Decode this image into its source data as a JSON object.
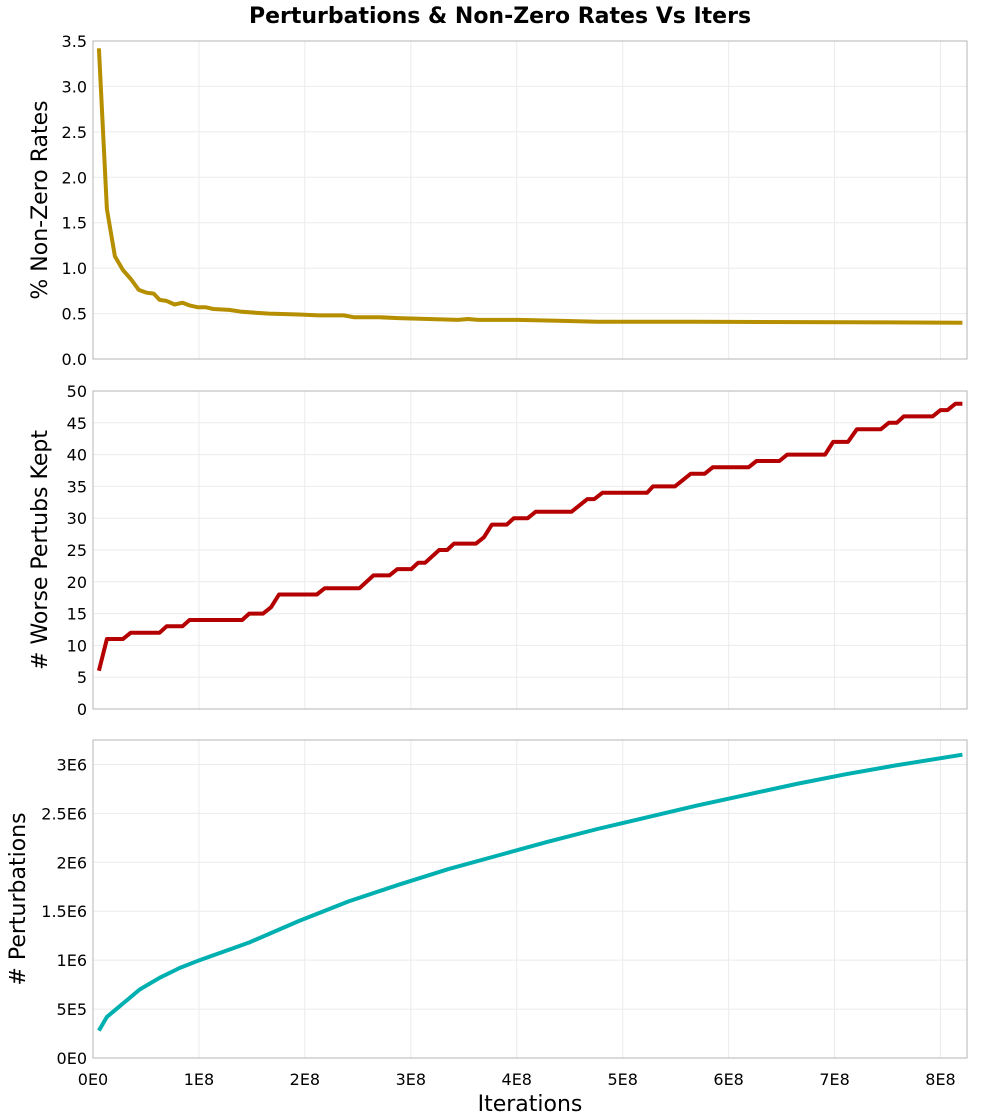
{
  "chart_data": {
    "title": "Perturbations & Non-Zero Rates Vs Iters",
    "xlabel": "Iterations",
    "xlim": [
      0,
      825000000
    ],
    "xticks": [
      0,
      100000000,
      200000000,
      300000000,
      400000000,
      500000000,
      600000000,
      700000000,
      800000000
    ],
    "xtick_labels": [
      "0E0",
      "1E8",
      "2E8",
      "3E8",
      "4E8",
      "5E8",
      "6E8",
      "7E8",
      "8E8"
    ],
    "grid": true,
    "panels": [
      {
        "type": "line",
        "ylabel": "% Non-Zero Rates",
        "ylim": [
          0,
          3.5
        ],
        "yticks": [
          0,
          0.5,
          1.0,
          1.5,
          2.0,
          2.5,
          3.0,
          3.5
        ],
        "ytick_labels": [
          "0.0",
          "0.5",
          "1.0",
          "1.5",
          "2.0",
          "2.5",
          "3.0",
          "3.5"
        ],
        "color": "#b58f00",
        "x_e8": [
          0.056,
          0.131,
          0.207,
          0.282,
          0.357,
          0.432,
          0.507,
          0.573,
          0.629,
          0.695,
          0.77,
          0.845,
          0.911,
          0.986,
          1.061,
          1.136,
          1.286,
          1.408,
          1.531,
          1.662,
          1.944,
          2.131,
          2.366,
          2.46,
          2.695,
          2.883,
          3.164,
          3.446,
          3.54,
          3.634,
          4.009,
          4.385,
          4.761,
          5.23,
          5.7,
          8.207
        ],
        "y": [
          3.42,
          1.65,
          1.13,
          0.98,
          0.88,
          0.76,
          0.73,
          0.72,
          0.65,
          0.64,
          0.6,
          0.62,
          0.59,
          0.57,
          0.57,
          0.55,
          0.54,
          0.52,
          0.51,
          0.5,
          0.49,
          0.48,
          0.48,
          0.46,
          0.46,
          0.45,
          0.44,
          0.43,
          0.44,
          0.43,
          0.43,
          0.42,
          0.41,
          0.41,
          0.41,
          0.4
        ]
      },
      {
        "type": "line",
        "ylabel": "# Worse Pertubs Kept",
        "ylim": [
          0,
          50
        ],
        "yticks": [
          0,
          5,
          10,
          15,
          20,
          25,
          30,
          35,
          40,
          45,
          50
        ],
        "ytick_labels": [
          "0",
          "5",
          "10",
          "15",
          "20",
          "25",
          "30",
          "35",
          "40",
          "45",
          "50"
        ],
        "color": "#b40000",
        "x_e8": [
          0.056,
          0.131,
          0.282,
          0.357,
          0.629,
          0.695,
          0.845,
          0.911,
          1.408,
          1.474,
          1.606,
          1.681,
          1.756,
          2.113,
          2.188,
          2.516,
          2.648,
          2.798,
          2.873,
          3.005,
          3.07,
          3.136,
          3.268,
          3.343,
          3.408,
          3.615,
          3.69,
          3.765,
          3.906,
          3.972,
          4.103,
          4.178,
          4.516,
          4.667,
          4.732,
          4.808,
          5.23,
          5.286,
          5.493,
          5.643,
          5.775,
          5.85,
          6.188,
          6.263,
          6.479,
          6.554,
          6.911,
          6.986,
          7.127,
          7.211,
          7.437,
          7.512,
          7.587,
          7.653,
          7.925,
          8.0,
          8.066,
          8.141,
          8.207
        ],
        "y": [
          6,
          11,
          11,
          12,
          12,
          13,
          13,
          14,
          14,
          15,
          15,
          16,
          18,
          18,
          19,
          19,
          21,
          21,
          22,
          22,
          23,
          23,
          25,
          25,
          26,
          26,
          27,
          29,
          29,
          30,
          30,
          31,
          31,
          33,
          33,
          34,
          34,
          35,
          35,
          37,
          37,
          38,
          38,
          39,
          39,
          40,
          40,
          42,
          42,
          44,
          44,
          45,
          45,
          46,
          46,
          47,
          47,
          48,
          48
        ]
      },
      {
        "type": "line",
        "ylabel": "# Perturbations",
        "ylim": [
          0,
          3250000
        ],
        "yticks": [
          0,
          500000,
          1000000,
          1500000,
          2000000,
          2500000,
          3000000
        ],
        "ytick_labels": [
          "0E0",
          "5E5",
          "1E6",
          "1.5E6",
          "2E6",
          "2.5E6",
          "3E6"
        ],
        "color": "#00b0b0",
        "x_e8": [
          0.056,
          0.131,
          0.254,
          0.441,
          0.629,
          0.817,
          1.005,
          1.474,
          1.944,
          2.413,
          2.883,
          3.352,
          3.822,
          4.291,
          4.761,
          5.23,
          5.7,
          6.169,
          6.638,
          7.108,
          7.577,
          8.207
        ],
        "y": [
          280000,
          420000,
          530000,
          700000,
          820000,
          920000,
          1000000,
          1180000,
          1400000,
          1600000,
          1770000,
          1930000,
          2070000,
          2210000,
          2340000,
          2460000,
          2580000,
          2690000,
          2800000,
          2900000,
          2990000,
          3100000
        ]
      }
    ]
  }
}
